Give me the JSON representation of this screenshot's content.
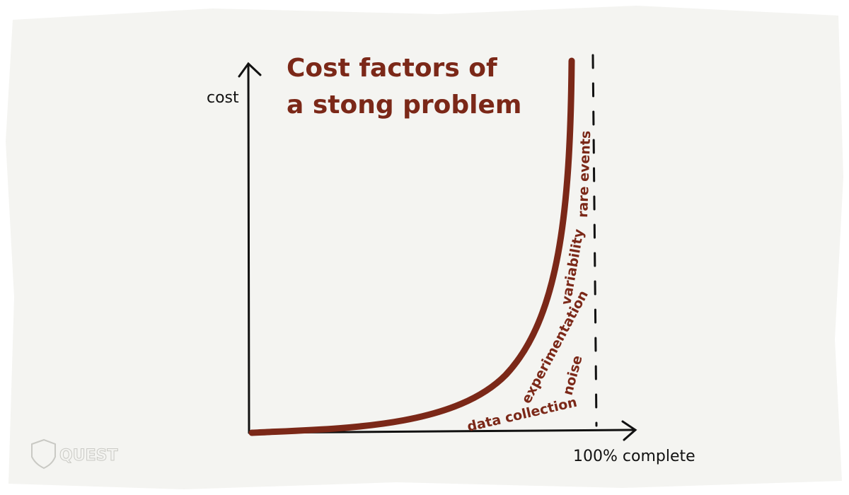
{
  "title": {
    "lines": [
      "Cost factors of",
      "a stong problem"
    ]
  },
  "axes": {
    "y_label": "cost",
    "x_label": "100% complete"
  },
  "annotations": [
    "data collection",
    "noise",
    "experimentation",
    "variability",
    "rare events"
  ],
  "logo": {
    "text": "QUEST"
  }
}
